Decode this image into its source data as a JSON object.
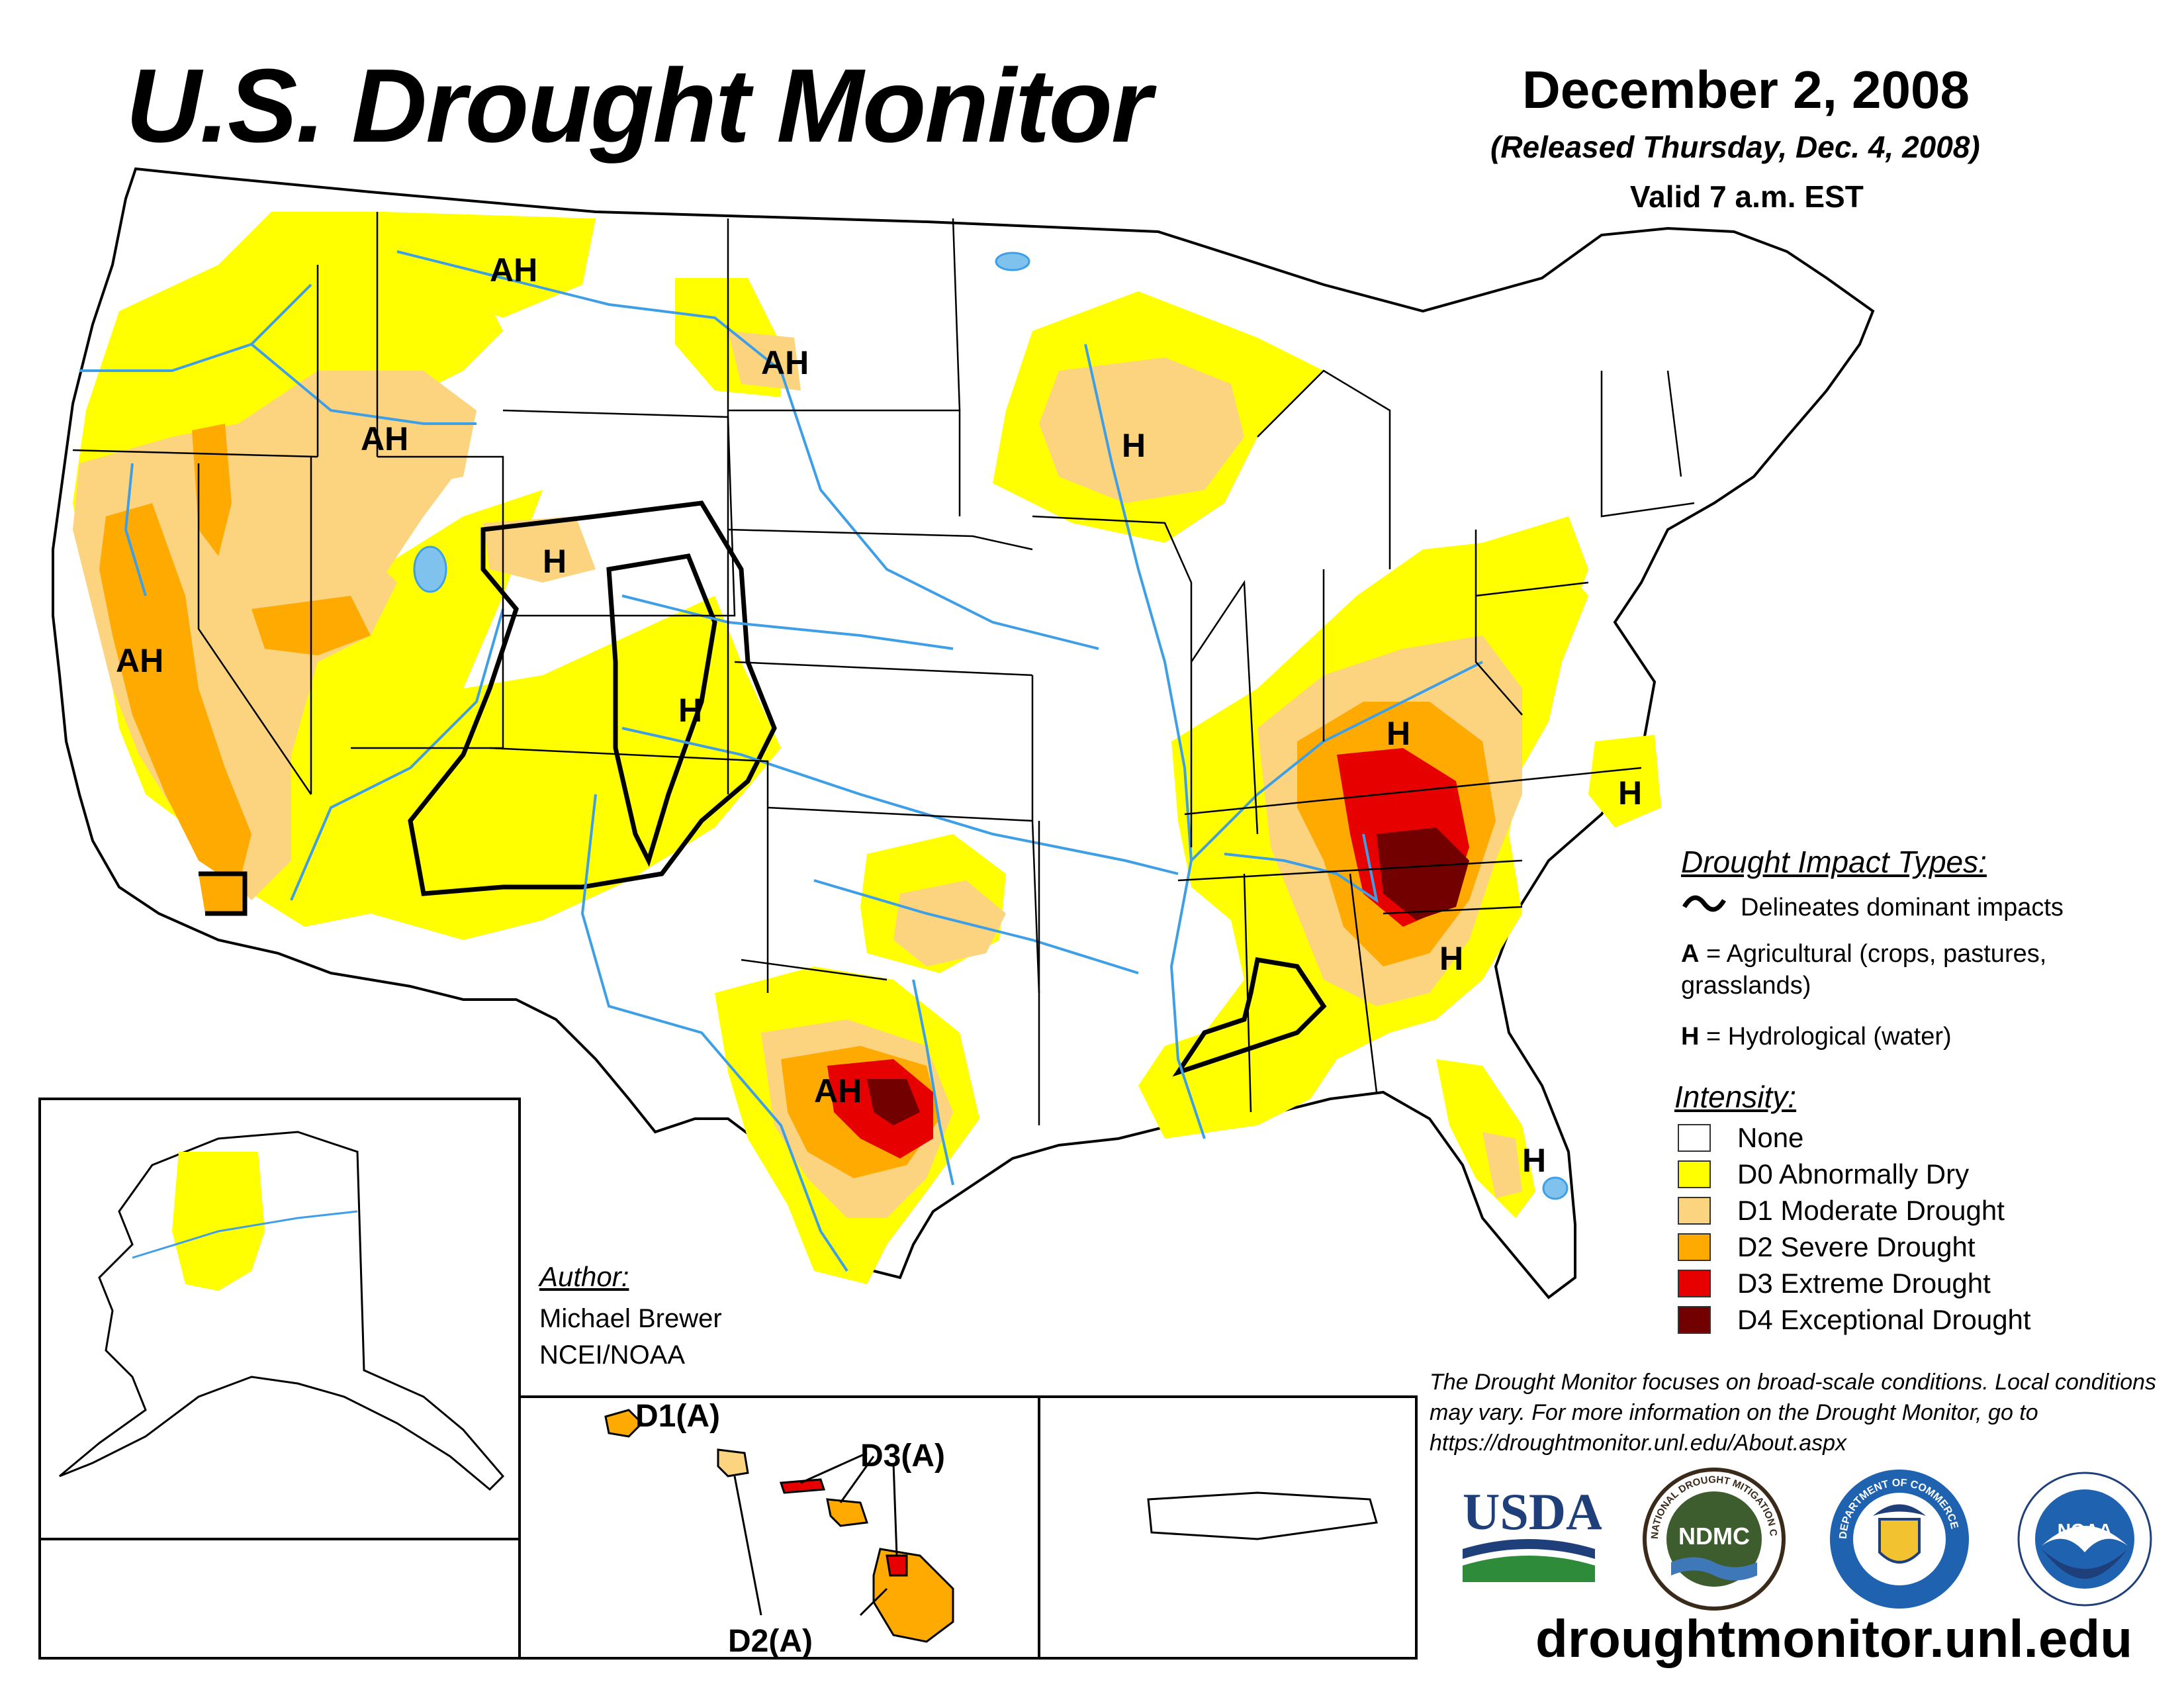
{
  "title": "U.S. Drought Monitor",
  "date": "December 2, 2008",
  "released": "(Released Thursday, Dec. 4, 2008)",
  "valid": "Valid 7 a.m. EST",
  "impact_types": {
    "title": "Drought Impact Types:",
    "delineates": "Delineates dominant impacts",
    "agricultural_key": "A",
    "agricultural_text": " = Agricultural (crops, pastures,",
    "agricultural_text2": "grasslands)",
    "hydrological_key": "H",
    "hydrological_text": " = Hydrological (water)"
  },
  "intensity": {
    "title": "Intensity:",
    "levels": [
      {
        "label": "None",
        "color": "#ffffff"
      },
      {
        "label": "D0 Abnormally Dry",
        "color": "#ffff00"
      },
      {
        "label": "D1 Moderate Drought",
        "color": "#fcd37f"
      },
      {
        "label": "D2 Severe Drought",
        "color": "#ffaa00"
      },
      {
        "label": "D3 Extreme Drought",
        "color": "#e60000"
      },
      {
        "label": "D4 Exceptional Drought",
        "color": "#730000"
      }
    ]
  },
  "author": {
    "heading": "Author:",
    "name": "Michael Brewer",
    "org": "NCEI/NOAA"
  },
  "disclaimer": "The Drought Monitor focuses on broad-scale conditions. Local conditions may vary. For more information on the Drought Monitor, go to https://droughtmonitor.unl.edu/About.aspx",
  "website": "droughtmonitor.unl.edu",
  "map_labels": {
    "ah_mt": "AH",
    "ah_nd": "AH",
    "ah_id": "AH",
    "ah_ca": "AH",
    "h_wy": "H",
    "h_co": "H",
    "h_wi": "H",
    "h_ky": "H",
    "h_nc": "H",
    "h_ga": "H",
    "h_fl": "H",
    "ah_tx": "AH",
    "hawaii_d1": "D1(A)",
    "hawaii_d3": "D3(A)",
    "hawaii_d2": "D2(A)"
  },
  "logos": {
    "usda": "USDA",
    "ndmc": "NDMC",
    "ndmc_ring": "NATIONAL DROUGHT MITIGATION CENTER",
    "doc_ring": "DEPARTMENT OF COMMERCE",
    "noaa": "NOAA"
  },
  "colors": {
    "none": "#ffffff",
    "d0": "#ffff00",
    "d1": "#fcd37f",
    "d2": "#ffaa00",
    "d3": "#e60000",
    "d4": "#730000",
    "water": "#3f9fe6"
  }
}
